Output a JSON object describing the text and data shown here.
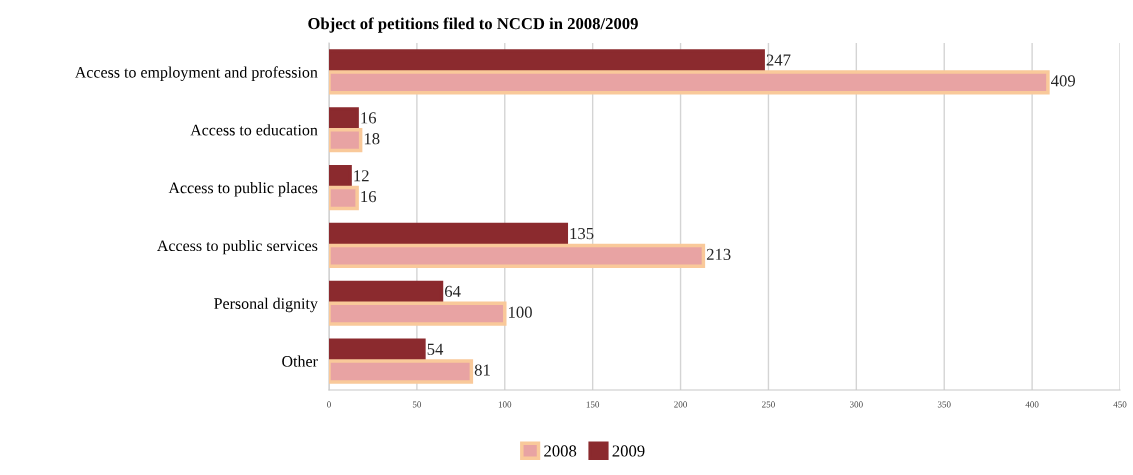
{
  "chart_data": {
    "type": "bar",
    "orientation": "horizontal",
    "title": "Object of petitions filed to NCCD in 2008/2009",
    "categories": [
      "Access to employment and profession",
      "Access to education",
      "Access to public places",
      "Access to public services",
      "Personal dignity",
      "Other"
    ],
    "series": [
      {
        "name": "2008",
        "color": "#e8a3a3",
        "values": [
          409,
          18,
          16,
          213,
          100,
          81
        ]
      },
      {
        "name": "2009",
        "color": "#8b2a2e",
        "values": [
          247,
          16,
          12,
          135,
          64,
          54
        ]
      }
    ],
    "xlim": [
      0,
      450
    ],
    "xticks": [
      0,
      50,
      100,
      150,
      200,
      250,
      300,
      350,
      400,
      450
    ],
    "grid": "x",
    "legend": "bottom",
    "data_labels": true
  }
}
